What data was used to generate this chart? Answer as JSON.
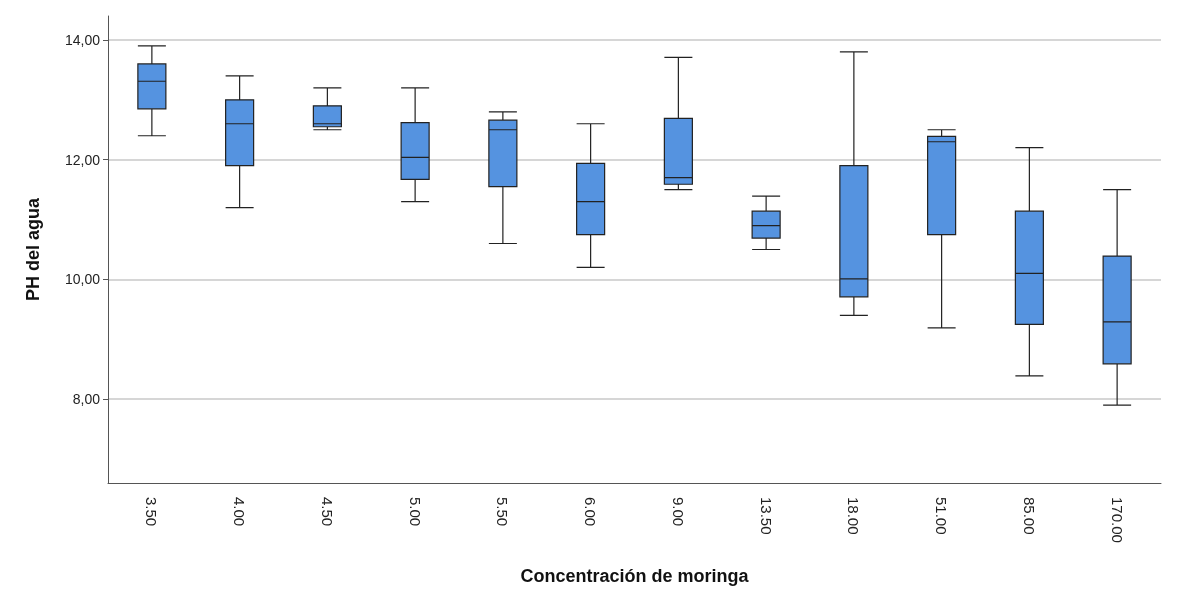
{
  "chart_data": {
    "type": "box",
    "xlabel": "Concentración de moringa",
    "ylabel": "PH del agua",
    "categories": [
      "3.50",
      "4.00",
      "4.50",
      "5.00",
      "5.50",
      "6.00",
      "9.00",
      "13.50",
      "18.00",
      "51.00",
      "85.00",
      "170.00"
    ],
    "color": "#5593e0",
    "boxes": [
      {
        "low": 12.4,
        "q1": 12.85,
        "median": 13.31,
        "q3": 13.6,
        "high": 13.9
      },
      {
        "low": 11.2,
        "q1": 11.9,
        "median": 12.6,
        "q3": 13.0,
        "high": 13.4
      },
      {
        "low": 12.5,
        "q1": 12.55,
        "median": 12.6,
        "q3": 12.9,
        "high": 13.2
      },
      {
        "low": 11.3,
        "q1": 11.67,
        "median": 12.04,
        "q3": 12.62,
        "high": 13.2
      },
      {
        "low": 10.6,
        "q1": 11.55,
        "median": 12.5,
        "q3": 12.66,
        "high": 12.8
      },
      {
        "low": 10.2,
        "q1": 10.75,
        "median": 11.3,
        "q3": 11.94,
        "high": 12.6
      },
      {
        "low": 11.5,
        "q1": 11.59,
        "median": 11.7,
        "q3": 12.69,
        "high": 13.71
      },
      {
        "low": 10.5,
        "q1": 10.69,
        "median": 10.9,
        "q3": 11.14,
        "high": 11.39
      },
      {
        "low": 9.4,
        "q1": 9.71,
        "median": 10.01,
        "q3": 11.9,
        "high": 13.8
      },
      {
        "low": 9.19,
        "q1": 10.75,
        "median": 12.3,
        "q3": 12.39,
        "high": 12.5
      },
      {
        "low": 8.39,
        "q1": 9.25,
        "median": 10.1,
        "q3": 11.14,
        "high": 12.2
      },
      {
        "low": 7.9,
        "q1": 8.59,
        "median": 9.29,
        "q3": 10.39,
        "high": 11.5
      }
    ],
    "ylim": [
      6.6,
      14.4
    ],
    "yticks": [
      {
        "value": 8,
        "label": "8,00"
      },
      {
        "value": 10,
        "label": "10,00"
      },
      {
        "value": 12,
        "label": "12,00"
      },
      {
        "value": 14,
        "label": "14,00"
      }
    ],
    "grid": "y"
  }
}
